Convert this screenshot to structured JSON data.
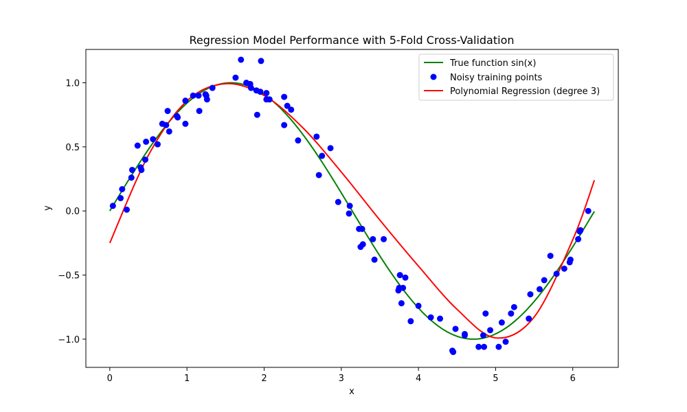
{
  "chart_data": {
    "type": "scatter",
    "title": "Regression Model Performance with 5-Fold Cross-Validation",
    "xlabel": "x",
    "ylabel": "y",
    "xlim": [
      -0.31,
      6.59
    ],
    "ylim": [
      -1.22,
      1.26
    ],
    "xticks": [
      0,
      1,
      2,
      3,
      4,
      5,
      6
    ],
    "xtick_labels": [
      "0",
      "1",
      "2",
      "3",
      "4",
      "5",
      "6"
    ],
    "yticks": [
      -1.0,
      -0.5,
      0.0,
      0.5,
      1.0
    ],
    "ytick_labels": [
      "−1.0",
      "−0.5",
      "0.0",
      "0.5",
      "1.0"
    ],
    "grid": false,
    "legend_position": "upper right",
    "series": [
      {
        "name": "True function sin(x)",
        "kind": "line",
        "color": "#008000",
        "function": "sin(x)",
        "x_range": [
          0,
          6.28
        ]
      },
      {
        "name": "Noisy training points",
        "kind": "scatter",
        "color": "#0000ff",
        "points": [
          [
            0.04,
            0.04
          ],
          [
            0.14,
            0.1
          ],
          [
            0.16,
            0.17
          ],
          [
            0.22,
            0.01
          ],
          [
            0.28,
            0.26
          ],
          [
            0.29,
            0.32
          ],
          [
            0.36,
            0.51
          ],
          [
            0.4,
            0.34
          ],
          [
            0.41,
            0.32
          ],
          [
            0.46,
            0.4
          ],
          [
            0.47,
            0.54
          ],
          [
            0.56,
            0.56
          ],
          [
            0.62,
            0.52
          ],
          [
            0.68,
            0.68
          ],
          [
            0.73,
            0.67
          ],
          [
            0.75,
            0.78
          ],
          [
            0.77,
            0.62
          ],
          [
            0.87,
            0.74
          ],
          [
            0.88,
            0.73
          ],
          [
            0.98,
            0.86
          ],
          [
            0.98,
            0.68
          ],
          [
            1.08,
            0.9
          ],
          [
            1.15,
            0.9
          ],
          [
            1.16,
            0.78
          ],
          [
            1.24,
            0.91
          ],
          [
            1.25,
            0.9
          ],
          [
            1.26,
            0.87
          ],
          [
            1.33,
            0.96
          ],
          [
            1.63,
            1.04
          ],
          [
            1.7,
            1.18
          ],
          [
            1.77,
            1.0
          ],
          [
            1.82,
            0.99
          ],
          [
            1.83,
            0.96
          ],
          [
            1.9,
            0.94
          ],
          [
            1.91,
            0.75
          ],
          [
            1.95,
            0.93
          ],
          [
            1.96,
            1.17
          ],
          [
            2.03,
            0.92
          ],
          [
            2.03,
            0.87
          ],
          [
            2.07,
            0.87
          ],
          [
            2.26,
            0.89
          ],
          [
            2.26,
            0.67
          ],
          [
            2.3,
            0.82
          ],
          [
            2.35,
            0.79
          ],
          [
            2.44,
            0.55
          ],
          [
            2.68,
            0.58
          ],
          [
            2.71,
            0.28
          ],
          [
            2.75,
            0.43
          ],
          [
            2.86,
            0.49
          ],
          [
            2.96,
            0.07
          ],
          [
            3.1,
            -0.02
          ],
          [
            3.11,
            0.04
          ],
          [
            3.23,
            -0.14
          ],
          [
            3.25,
            -0.28
          ],
          [
            3.27,
            -0.14
          ],
          [
            3.28,
            -0.26
          ],
          [
            3.41,
            -0.22
          ],
          [
            3.43,
            -0.38
          ],
          [
            3.55,
            -0.22
          ],
          [
            3.74,
            -0.62
          ],
          [
            3.75,
            -0.6
          ],
          [
            3.76,
            -0.5
          ],
          [
            3.78,
            -0.72
          ],
          [
            3.8,
            -0.6
          ],
          [
            3.83,
            -0.52
          ],
          [
            3.9,
            -0.86
          ],
          [
            4.0,
            -0.74
          ],
          [
            4.16,
            -0.83
          ],
          [
            4.28,
            -0.84
          ],
          [
            4.44,
            -1.09
          ],
          [
            4.45,
            -1.1
          ],
          [
            4.48,
            -0.92
          ],
          [
            4.6,
            -0.96
          ],
          [
            4.6,
            -0.97
          ],
          [
            4.78,
            -1.06
          ],
          [
            4.84,
            -0.97
          ],
          [
            4.85,
            -1.06
          ],
          [
            4.87,
            -0.8
          ],
          [
            4.93,
            -0.93
          ],
          [
            5.04,
            -1.06
          ],
          [
            5.08,
            -0.87
          ],
          [
            5.13,
            -1.02
          ],
          [
            5.2,
            -0.8
          ],
          [
            5.24,
            -0.75
          ],
          [
            5.43,
            -0.84
          ],
          [
            5.45,
            -0.65
          ],
          [
            5.57,
            -0.61
          ],
          [
            5.63,
            -0.54
          ],
          [
            5.71,
            -0.35
          ],
          [
            5.79,
            -0.49
          ],
          [
            5.89,
            -0.45
          ],
          [
            5.96,
            -0.4
          ],
          [
            5.97,
            -0.38
          ],
          [
            6.07,
            -0.22
          ],
          [
            6.09,
            -0.16
          ],
          [
            6.1,
            -0.15
          ],
          [
            6.2,
            0.0
          ]
        ]
      },
      {
        "name": "Polynomial Regression (degree 3)",
        "kind": "line",
        "color": "#ff0000",
        "function": "cubic fit",
        "x": [
          0,
          0.5,
          1,
          1.5,
          2,
          2.5,
          3,
          3.5,
          4,
          4.5,
          5,
          5.5,
          6,
          6.28
        ],
        "y": [
          -0.25,
          0.434,
          0.859,
          0.993,
          0.901,
          0.65,
          0.304,
          -0.071,
          -0.43,
          -0.767,
          -0.99,
          -0.827,
          -0.224,
          0.24
        ]
      }
    ]
  }
}
